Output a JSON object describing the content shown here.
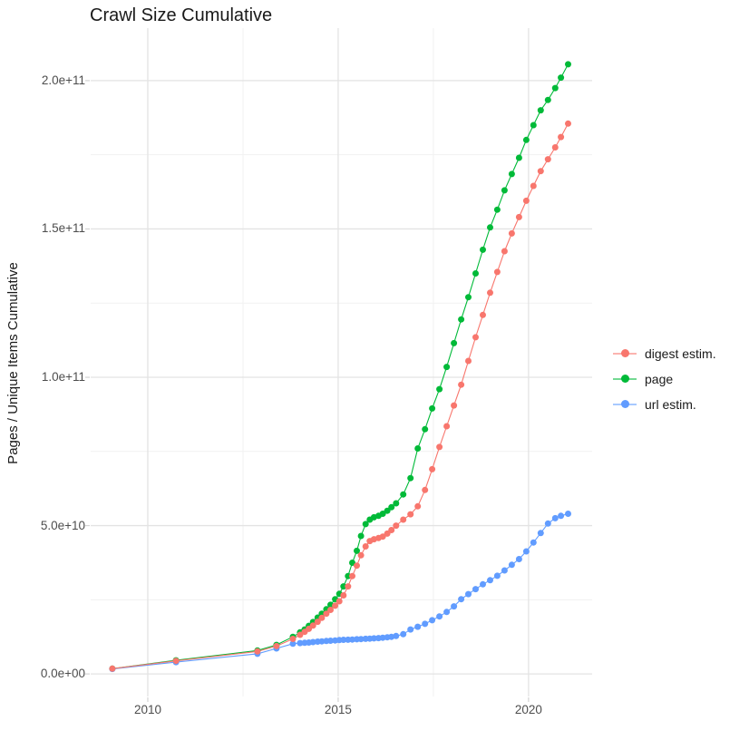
{
  "title": "Crawl Size Cumulative",
  "chart_data": {
    "type": "scatter",
    "title": "Crawl Size Cumulative",
    "xlabel": "",
    "ylabel": "Pages / Unique Items Cumulative",
    "grid": true,
    "legend_position": "right",
    "xlim": [
      2008.5,
      2021.67
    ],
    "ylim": [
      -7600000000.0,
      217700000000.0
    ],
    "x_ticks": {
      "major": [
        2010,
        2015,
        2020
      ],
      "minor": [
        2012.5,
        2017.5
      ],
      "labels": [
        "2010",
        "2015",
        "2020"
      ]
    },
    "y_ticks": {
      "major": [
        0,
        50000000000.0,
        100000000000.0,
        150000000000.0,
        200000000000.0
      ],
      "minor": [
        25000000000.0,
        75000000000.0,
        125000000000.0,
        175000000000.0
      ],
      "labels": [
        "0.0e+00",
        "5.0e+10",
        "1.0e+11",
        "1.5e+11",
        "2.0e+11"
      ]
    },
    "y_scale_factor": 1000000000,
    "y_unit": "pages / unique items (values stored in billions, multiply by y_scale_factor)",
    "x": [
      2009.07,
      2010.74,
      2012.88,
      2013.38,
      2013.81,
      2014.0,
      2014.12,
      2014.23,
      2014.34,
      2014.46,
      2014.57,
      2014.69,
      2014.8,
      2014.92,
      2015.03,
      2015.14,
      2015.26,
      2015.37,
      2015.49,
      2015.6,
      2015.72,
      2015.83,
      2015.94,
      2016.06,
      2016.17,
      2016.29,
      2016.4,
      2016.52,
      2016.71,
      2016.9,
      2017.09,
      2017.28,
      2017.47,
      2017.66,
      2017.85,
      2018.04,
      2018.23,
      2018.42,
      2018.61,
      2018.8,
      2018.99,
      2019.18,
      2019.37,
      2019.56,
      2019.75,
      2019.94,
      2020.13,
      2020.32,
      2020.51,
      2020.7,
      2020.85,
      2021.04
    ],
    "series": [
      {
        "name": "digest estim.",
        "color": "#F8766D",
        "y_billions": [
          1.8,
          4.4,
          7.6,
          9.4,
          11.8,
          13.2,
          14.2,
          15.2,
          16.3,
          17.6,
          18.9,
          20.3,
          21.6,
          23.0,
          24.5,
          26.5,
          29.5,
          33.0,
          36.5,
          40.0,
          43.0,
          44.8,
          45.4,
          45.8,
          46.3,
          47.3,
          48.5,
          50.0,
          52.0,
          53.8,
          56.5,
          62.0,
          69.0,
          76.5,
          83.5,
          90.5,
          97.5,
          105.5,
          113.5,
          121.0,
          128.5,
          135.5,
          142.5,
          148.5,
          154.0,
          159.5,
          164.5,
          169.5,
          173.5,
          177.5,
          181.0,
          185.5
        ]
      },
      {
        "name": "page",
        "color": "#00BA38",
        "y_billions": [
          1.8,
          4.6,
          7.9,
          9.8,
          12.5,
          14.0,
          15.0,
          16.2,
          17.5,
          19.0,
          20.3,
          21.8,
          23.3,
          25.2,
          27.0,
          29.5,
          33.0,
          37.5,
          41.5,
          46.5,
          50.5,
          52.0,
          52.8,
          53.3,
          54.0,
          55.0,
          56.2,
          57.5,
          60.5,
          66.0,
          76.0,
          82.5,
          89.5,
          96.0,
          103.5,
          111.5,
          119.5,
          127.0,
          135.0,
          143.0,
          150.5,
          156.5,
          163.0,
          168.5,
          174.0,
          180.0,
          185.0,
          190.0,
          193.5,
          197.5,
          201.0,
          205.5
        ]
      },
      {
        "name": "url estim.",
        "color": "#619CFF",
        "y_billions": [
          1.7,
          4.0,
          6.8,
          8.6,
          10.2,
          10.4,
          10.5,
          10.6,
          10.75,
          10.9,
          11.0,
          11.1,
          11.2,
          11.3,
          11.4,
          11.5,
          11.55,
          11.6,
          11.7,
          11.75,
          11.85,
          11.9,
          12.0,
          12.1,
          12.2,
          12.35,
          12.5,
          12.8,
          13.4,
          15.0,
          15.9,
          16.9,
          18.1,
          19.4,
          20.9,
          22.8,
          25.2,
          26.9,
          28.6,
          30.2,
          31.6,
          33.1,
          34.9,
          36.8,
          38.7,
          41.3,
          44.3,
          47.5,
          50.7,
          52.5,
          53.3,
          54.0
        ]
      }
    ],
    "colors": {
      "background": "#ffffff",
      "grid_major": "#e3e3e3",
      "grid_minor": "#f1f1f1",
      "tick_mark": "#d4d4d4",
      "axis_text": "#4d4d4d",
      "title_text": "#1a1a1a"
    }
  },
  "legend": {
    "items": [
      "digest estim.",
      "page",
      "url estim."
    ]
  }
}
